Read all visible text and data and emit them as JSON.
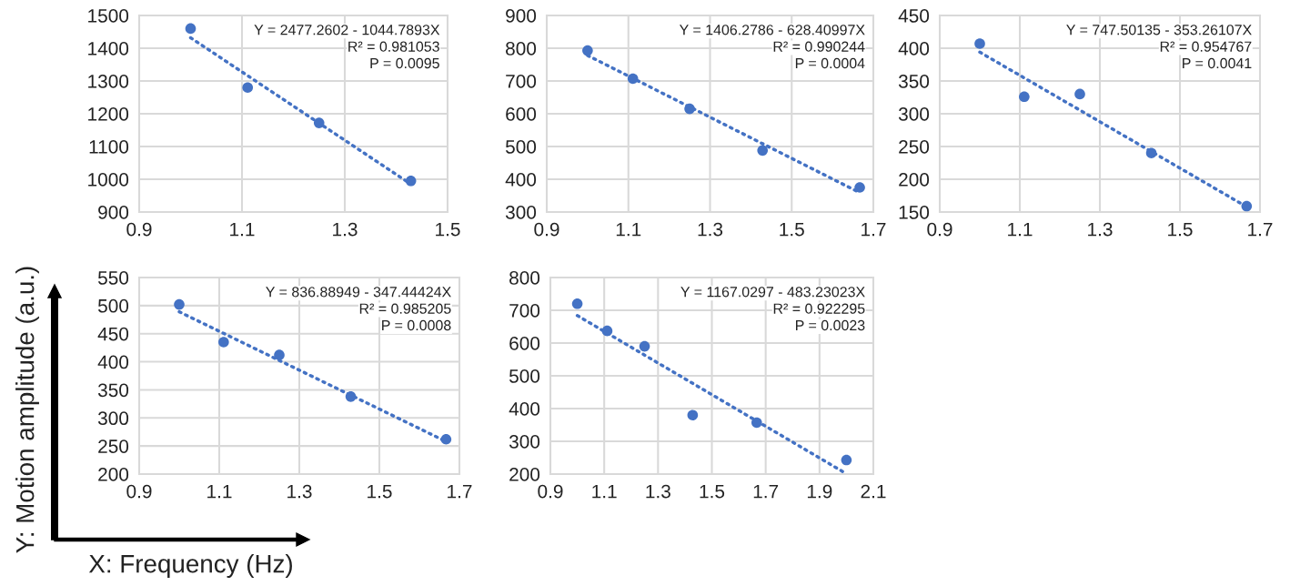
{
  "chart_data": [
    {
      "type": "scatter",
      "grid": true,
      "xlim": [
        0.9,
        1.5
      ],
      "xticks": [
        0.9,
        1.1,
        1.3,
        1.5
      ],
      "ylim": [
        900,
        1500
      ],
      "yticks": [
        900,
        1000,
        1100,
        1200,
        1300,
        1400,
        1500
      ],
      "series": [
        {
          "marker": "circle",
          "color": "#4472c4",
          "x": [
            1.0,
            1.111,
            1.25,
            1.4286
          ],
          "values": [
            1460,
            1280,
            1172,
            995
          ]
        },
        {
          "type": "line",
          "marker": "none",
          "line_style": "dotted",
          "color": "#4472c4",
          "x": [
            1.0,
            1.4286
          ],
          "values": [
            1432,
            985
          ]
        }
      ],
      "annotations": [
        "Y = 2477.2602 - 1044.7893X",
        "R² = 0.981053",
        "P = 0.0095"
      ]
    },
    {
      "type": "scatter",
      "grid": true,
      "xlim": [
        0.9,
        1.7
      ],
      "xticks": [
        0.9,
        1.1,
        1.3,
        1.5,
        1.7
      ],
      "ylim": [
        300,
        900
      ],
      "yticks": [
        300,
        400,
        500,
        600,
        700,
        800,
        900
      ],
      "series": [
        {
          "marker": "circle",
          "color": "#4472c4",
          "x": [
            1.0,
            1.111,
            1.25,
            1.4286,
            1.6667
          ],
          "values": [
            793,
            707,
            615,
            488,
            375
          ]
        },
        {
          "type": "line",
          "marker": "none",
          "line_style": "dotted",
          "color": "#4472c4",
          "x": [
            1.0,
            1.6667
          ],
          "values": [
            778,
            359
          ]
        }
      ],
      "annotations": [
        "Y = 1406.2786 - 628.40997X",
        "R² = 0.990244",
        "P = 0.0004"
      ]
    },
    {
      "type": "scatter",
      "grid": true,
      "xlim": [
        0.9,
        1.7
      ],
      "xticks": [
        0.9,
        1.1,
        1.3,
        1.5,
        1.7
      ],
      "ylim": [
        150,
        450
      ],
      "yticks": [
        150,
        200,
        250,
        300,
        350,
        400,
        450
      ],
      "series": [
        {
          "marker": "circle",
          "color": "#4472c4",
          "x": [
            1.0,
            1.111,
            1.25,
            1.4286,
            1.6667
          ],
          "values": [
            407,
            326,
            330,
            240,
            159
          ]
        },
        {
          "type": "line",
          "marker": "none",
          "line_style": "dotted",
          "color": "#4472c4",
          "x": [
            1.0,
            1.6667
          ],
          "values": [
            394,
            158
          ]
        }
      ],
      "annotations": [
        "Y = 747.50135 - 353.26107X",
        "R² = 0.954767",
        "P = 0.0041"
      ]
    },
    {
      "type": "scatter",
      "grid": true,
      "xlim": [
        0.9,
        1.7
      ],
      "xticks": [
        0.9,
        1.1,
        1.3,
        1.5,
        1.7
      ],
      "ylim": [
        200,
        550
      ],
      "yticks": [
        200,
        250,
        300,
        350,
        400,
        450,
        500,
        550
      ],
      "xlabel": "X: Frequency (Hz)",
      "ylabel": "Y: Motion amplitude (a.u.)",
      "series": [
        {
          "marker": "circle",
          "color": "#4472c4",
          "x": [
            1.0,
            1.111,
            1.25,
            1.4286,
            1.6667
          ],
          "values": [
            502,
            435,
            412,
            338,
            262
          ]
        },
        {
          "type": "line",
          "marker": "none",
          "line_style": "dotted",
          "color": "#4472c4",
          "x": [
            1.0,
            1.6667
          ],
          "values": [
            489,
            258
          ]
        }
      ],
      "annotations": [
        "Y = 836.88949 - 347.44424X",
        "R² = 0.985205",
        "P = 0.0008"
      ]
    },
    {
      "type": "scatter",
      "grid": true,
      "xlim": [
        0.9,
        2.1
      ],
      "xticks": [
        0.9,
        1.1,
        1.3,
        1.5,
        1.7,
        1.9,
        2.1
      ],
      "ylim": [
        200,
        800
      ],
      "yticks": [
        200,
        300,
        400,
        500,
        600,
        700,
        800
      ],
      "series": [
        {
          "marker": "circle",
          "color": "#4472c4",
          "x": [
            1.0,
            1.111,
            1.25,
            1.4286,
            1.6667,
            2.0
          ],
          "values": [
            720,
            637,
            590,
            380,
            357,
            243
          ]
        },
        {
          "type": "line",
          "marker": "none",
          "line_style": "dotted",
          "color": "#4472c4",
          "x": [
            1.0,
            2.0
          ],
          "values": [
            684,
            201
          ]
        }
      ],
      "annotations": [
        "Y = 1167.0297 - 483.23023X",
        "R² = 0.922295",
        "P = 0.0023"
      ]
    }
  ]
}
